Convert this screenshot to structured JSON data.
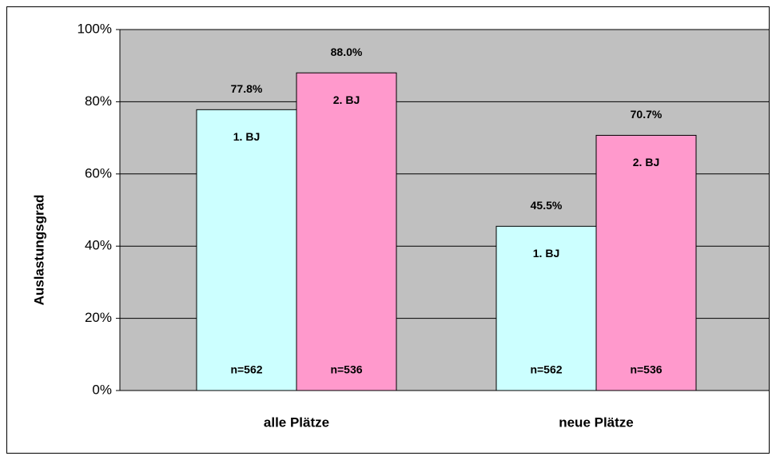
{
  "chart_data": {
    "type": "bar",
    "y_label": "Auslastungsgrad",
    "categories": [
      "alle Plätze",
      "neue Plätze"
    ],
    "series": [
      {
        "name": "1. BJ",
        "color": "#ccffff",
        "values": [
          77.8,
          45.5
        ],
        "value_labels": [
          "77.8%",
          "45.5%"
        ],
        "n_labels": [
          "n=562",
          "n=562"
        ]
      },
      {
        "name": "2. BJ",
        "color": "#ff99cc",
        "values": [
          88.0,
          70.7
        ],
        "value_labels": [
          "88.0%",
          "70.7%"
        ],
        "n_labels": [
          "n=536",
          "n=536"
        ]
      }
    ],
    "ylim": [
      0,
      100
    ],
    "yticks": [
      {
        "value": 0,
        "label": "0%"
      },
      {
        "value": 20,
        "label": "20%"
      },
      {
        "value": 40,
        "label": "40%"
      },
      {
        "value": 60,
        "label": "60%"
      },
      {
        "value": 80,
        "label": "80%"
      },
      {
        "value": 100,
        "label": "100%"
      }
    ],
    "grid": true
  }
}
